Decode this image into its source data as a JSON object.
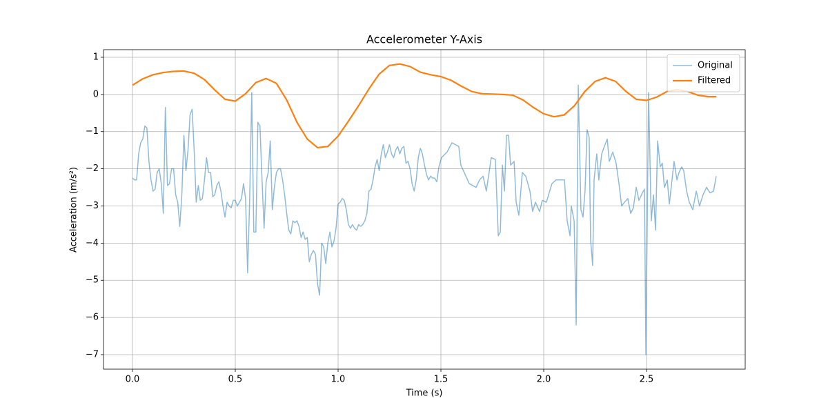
{
  "chart_data": {
    "type": "line",
    "title": "Accelerometer Y-Axis",
    "xlabel": "Time (s)",
    "ylabel": "Acceleration (m/s²)",
    "xlim": [
      -0.141,
      2.98
    ],
    "ylim": [
      -7.39,
      1.204
    ],
    "xticks": [
      {
        "value": 0,
        "label": "0.0"
      },
      0.5,
      {
        "value": 1,
        "label": "1.0"
      },
      1.5,
      {
        "value": 2,
        "label": "2.0"
      },
      2.5
    ],
    "yticks": [
      {
        "value": -7,
        "label": "−7"
      },
      {
        "value": -6,
        "label": "−6"
      },
      {
        "value": -5,
        "label": "−5"
      },
      {
        "value": -4,
        "label": "−4"
      },
      {
        "value": -3,
        "label": "−3"
      },
      {
        "value": -2,
        "label": "−2"
      },
      {
        "value": -1,
        "label": "−1"
      },
      0,
      1
    ],
    "grid": true,
    "legend": "upper right",
    "series": [
      {
        "name": "Original",
        "color": "#1f77b4",
        "alpha": 0.5,
        "linewidth": 1.5,
        "x": [
          0,
          0.01,
          0.02,
          0.03,
          0.04,
          0.05,
          0.06,
          0.07,
          0.08,
          0.09,
          0.1,
          0.11,
          0.12,
          0.13,
          0.14,
          0.15,
          0.16,
          0.17,
          0.18,
          0.19,
          0.2,
          0.21,
          0.22,
          0.23,
          0.24,
          0.25,
          0.26,
          0.27,
          0.28,
          0.29,
          0.3,
          0.31,
          0.32,
          0.33,
          0.34,
          0.35,
          0.36,
          0.37,
          0.38,
          0.39,
          0.4,
          0.41,
          0.42,
          0.43,
          0.44,
          0.45,
          0.46,
          0.47,
          0.48,
          0.49,
          0.5,
          0.51,
          0.52,
          0.53,
          0.54,
          0.55,
          0.56,
          0.57,
          0.58,
          0.59,
          0.6,
          0.61,
          0.62,
          0.63,
          0.64,
          0.65,
          0.66,
          0.67,
          0.68,
          0.69,
          0.7,
          0.71,
          0.72,
          0.73,
          0.74,
          0.75,
          0.76,
          0.77,
          0.78,
          0.79,
          0.8,
          0.81,
          0.82,
          0.83,
          0.84,
          0.85,
          0.86,
          0.87,
          0.88,
          0.89,
          0.9,
          0.91,
          0.92,
          0.93,
          0.94,
          0.95,
          0.96,
          0.97,
          0.98,
          0.99,
          1.0,
          1.01,
          1.02,
          1.03,
          1.04,
          1.05,
          1.06,
          1.07,
          1.08,
          1.09,
          1.1,
          1.11,
          1.12,
          1.13,
          1.14,
          1.15,
          1.16,
          1.17,
          1.18,
          1.19,
          1.2,
          1.21,
          1.22,
          1.23,
          1.24,
          1.25,
          1.26,
          1.27,
          1.28,
          1.29,
          1.3,
          1.31,
          1.32,
          1.33,
          1.34,
          1.35,
          1.36,
          1.37,
          1.38,
          1.39,
          1.4,
          1.41,
          1.42,
          1.43,
          1.44,
          1.45,
          1.46,
          1.47,
          1.48,
          1.49,
          1.503,
          1.53,
          1.554,
          1.587,
          1.597,
          1.638,
          1.671,
          1.688,
          1.705,
          1.721,
          1.745,
          1.765,
          1.779,
          1.789,
          1.799,
          1.809,
          1.819,
          1.829,
          1.839,
          1.856,
          1.866,
          1.879,
          1.896,
          1.913,
          1.933,
          1.946,
          1.96,
          1.98,
          1.993,
          2.013,
          2.04,
          2.06,
          2.081,
          2.101,
          2.114,
          2.128,
          2.134,
          2.148,
          2.158,
          2.168,
          2.181,
          2.191,
          2.201,
          2.211,
          2.221,
          2.228,
          2.238,
          2.245,
          2.258,
          2.268,
          2.282,
          2.295,
          2.309,
          2.319,
          2.336,
          2.352,
          2.366,
          2.379,
          2.393,
          2.409,
          2.423,
          2.436,
          2.45,
          2.463,
          2.48,
          2.49,
          2.497,
          2.51,
          2.523,
          2.534,
          2.544,
          2.554,
          2.567,
          2.577,
          2.587,
          2.601,
          2.611,
          2.624,
          2.634,
          2.648,
          2.658,
          2.671,
          2.681,
          2.695,
          2.708,
          2.725,
          2.742,
          2.758,
          2.775,
          2.792,
          2.809,
          2.826,
          2.839
        ],
        "values": [
          -2.25,
          -2.3,
          -2.3,
          -1.6,
          -1.3,
          -1.2,
          -0.85,
          -0.9,
          -1.8,
          -2.3,
          -2.6,
          -2.55,
          -2.1,
          -2.0,
          -2.4,
          -3.2,
          -0.35,
          -2.45,
          -2.4,
          -2.0,
          -2.0,
          -2.7,
          -2.9,
          -3.55,
          -2.7,
          -1.1,
          -2.05,
          -1.5,
          -0.55,
          -0.4,
          -1.5,
          -2.9,
          -2.45,
          -2.85,
          -2.8,
          -2.3,
          -1.7,
          -2.1,
          -2.1,
          -2.75,
          -2.7,
          -2.45,
          -2.35,
          -2.6,
          -3.0,
          -3.3,
          -2.9,
          -3.0,
          -3.05,
          -2.85,
          -2.85,
          -3.0,
          -2.9,
          -2.8,
          -2.4,
          -2.8,
          -4.8,
          -2.8,
          0.05,
          -3.7,
          -3.7,
          -0.75,
          -0.85,
          -2.3,
          -3.6,
          -2.35,
          -2.1,
          -1.25,
          -3.1,
          -2.5,
          -2.1,
          -2.0,
          -2.0,
          -2.3,
          -2.7,
          -3.2,
          -3.65,
          -3.75,
          -3.4,
          -3.45,
          -3.4,
          -3.55,
          -3.85,
          -3.7,
          -3.9,
          -3.85,
          -4.5,
          -4.3,
          -4.2,
          -4.3,
          -5.1,
          -5.4,
          -4.0,
          -4.1,
          -4.55,
          -4.0,
          -3.7,
          -4.1,
          -3.95,
          -3.6,
          -2.95,
          -2.9,
          -2.8,
          -2.85,
          -3.1,
          -3.5,
          -3.6,
          -3.5,
          -3.6,
          -3.65,
          -3.5,
          -3.55,
          -3.5,
          -3.4,
          -3.2,
          -2.6,
          -2.55,
          -2.3,
          -1.95,
          -1.75,
          -2.05,
          -1.6,
          -1.35,
          -1.7,
          -1.55,
          -1.35,
          -1.6,
          -1.7,
          -1.5,
          -1.4,
          -1.6,
          -1.45,
          -1.4,
          -1.85,
          -1.8,
          -2.0,
          -2.4,
          -2.6,
          -2.3,
          -1.7,
          -1.45,
          -1.6,
          -1.9,
          -2.15,
          -2.3,
          -2.2,
          -2.25,
          -2.25,
          -2.35,
          -1.95,
          -1.7,
          -1.55,
          -1.3,
          -1.4,
          -1.9,
          -2.4,
          -2.5,
          -2.3,
          -2.2,
          -2.6,
          -1.7,
          -1.75,
          -3.8,
          -3.7,
          -1.9,
          -2.6,
          -1.1,
          -1.1,
          -1.9,
          -1.8,
          -2.9,
          -3.25,
          -2.1,
          -2.2,
          -2.6,
          -3.15,
          -2.9,
          -3.15,
          -2.85,
          -2.9,
          -2.4,
          -2.3,
          -2.3,
          -2.3,
          -3.4,
          -3.8,
          -3.0,
          -3.4,
          -6.2,
          0.25,
          -3.1,
          -3.3,
          -2.6,
          -0.95,
          -1.15,
          -3.9,
          -4.6,
          -2.3,
          -1.6,
          -2.3,
          -1.6,
          -1.4,
          -1.2,
          -1.8,
          -1.55,
          -1.85,
          -2.4,
          -3.0,
          -2.9,
          -2.8,
          -3.2,
          -3.05,
          -2.5,
          -2.85,
          -2.65,
          -2.55,
          -7.0,
          0.05,
          -3.4,
          -2.7,
          -3.65,
          -1.25,
          -1.95,
          -1.85,
          -2.5,
          -2.3,
          -2.95,
          -2.3,
          -1.8,
          -2.3,
          -2.1,
          -1.95,
          -2.05,
          -2.6,
          -2.9,
          -3.1,
          -2.6,
          -3.0,
          -2.7,
          -2.5,
          -2.65,
          -2.6,
          -2.2
        ]
      },
      {
        "name": "Filtered",
        "color": "#ff7f0e",
        "alpha": 1,
        "linewidth": 2.2,
        "x": [
          0,
          0.05,
          0.1,
          0.15,
          0.2,
          0.25,
          0.3,
          0.35,
          0.4,
          0.45,
          0.5,
          0.55,
          0.6,
          0.65,
          0.7,
          0.75,
          0.8,
          0.85,
          0.9,
          0.95,
          1.0,
          1.05,
          1.1,
          1.15,
          1.2,
          1.25,
          1.3,
          1.35,
          1.4,
          1.45,
          1.5,
          1.55,
          1.6,
          1.65,
          1.7,
          1.75,
          1.8,
          1.85,
          1.9,
          1.95,
          2.0,
          2.05,
          2.1,
          2.15,
          2.2,
          2.25,
          2.3,
          2.35,
          2.4,
          2.45,
          2.5,
          2.55,
          2.6,
          2.65,
          2.7,
          2.75,
          2.8,
          2.84
        ],
        "values": [
          0.25,
          0.42,
          0.53,
          0.59,
          0.62,
          0.63,
          0.57,
          0.4,
          0.12,
          -0.13,
          -0.18,
          0.02,
          0.32,
          0.43,
          0.3,
          -0.15,
          -0.75,
          -1.2,
          -1.43,
          -1.4,
          -1.12,
          -0.72,
          -0.3,
          0.15,
          0.55,
          0.78,
          0.82,
          0.75,
          0.6,
          0.53,
          0.48,
          0.38,
          0.22,
          0.08,
          0.02,
          0.01,
          0.0,
          -0.02,
          -0.15,
          -0.35,
          -0.52,
          -0.6,
          -0.55,
          -0.3,
          0.08,
          0.35,
          0.45,
          0.35,
          0.08,
          -0.13,
          -0.16,
          -0.07,
          0.08,
          0.13,
          0.08,
          -0.02,
          -0.06,
          -0.06
        ]
      }
    ]
  }
}
